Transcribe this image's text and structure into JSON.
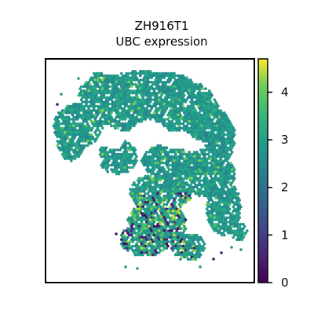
{
  "chart_data": {
    "type": "scatter",
    "title_line1": "ZH916T1",
    "title_line2": "UBC expression",
    "colorbar": {
      "colormap": "viridis",
      "range": [
        0,
        4.7
      ],
      "ticks": [
        "0",
        "1",
        "2",
        "3",
        "4"
      ],
      "tick_values": [
        0,
        1,
        2,
        3,
        4
      ]
    },
    "typical_value": 2.8,
    "axes_frame": true,
    "grid": false,
    "colors": {
      "low": "#440154",
      "mid": "#21918c",
      "high": "#fde725"
    }
  }
}
